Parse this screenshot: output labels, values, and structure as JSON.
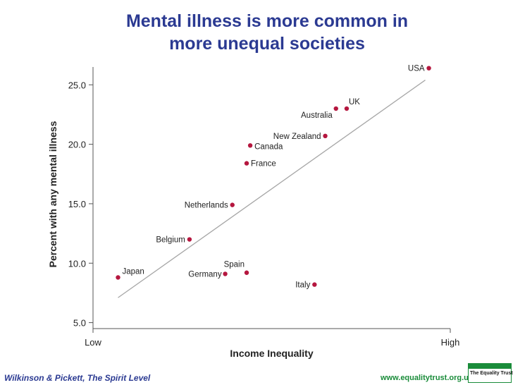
{
  "title": {
    "line1": "Mental illness is more common in",
    "line2": "more unequal societies"
  },
  "footer": {
    "citation": "Wilkinson & Pickett, The Spirit Level",
    "url": "www.equalitytrust.org.uk",
    "logo_text": "The Equality Trust"
  },
  "colors": {
    "title": "#2b3a92",
    "point": "#b5173f",
    "fit_line": "#a6a6a6",
    "footer_url": "#1a8c3a"
  },
  "chart_data": {
    "type": "scatter",
    "title": "Mental illness is more common in more unequal societies",
    "xlabel": "Income Inequality",
    "ylabel": "Percent with any mental illness",
    "x_tick_labels": [
      "Low",
      "High"
    ],
    "y_ticks": [
      "5.0",
      "10.0",
      "15.0",
      "20.0",
      "25.0"
    ],
    "xlim": [
      0,
      1
    ],
    "ylim": [
      4.5,
      26.5
    ],
    "grid": false,
    "points": [
      {
        "label": "Japan",
        "x": 0.07,
        "y": 8.8
      },
      {
        "label": "Belgium",
        "x": 0.27,
        "y": 12.0
      },
      {
        "label": "Germany",
        "x": 0.37,
        "y": 9.1
      },
      {
        "label": "Spain",
        "x": 0.43,
        "y": 9.2
      },
      {
        "label": "Netherlands",
        "x": 0.39,
        "y": 14.9
      },
      {
        "label": "France",
        "x": 0.43,
        "y": 18.4
      },
      {
        "label": "Canada",
        "x": 0.44,
        "y": 19.9
      },
      {
        "label": "Italy",
        "x": 0.62,
        "y": 8.2
      },
      {
        "label": "New Zealand",
        "x": 0.65,
        "y": 20.7
      },
      {
        "label": "Australia",
        "x": 0.68,
        "y": 23.0
      },
      {
        "label": "UK",
        "x": 0.71,
        "y": 23.0
      },
      {
        "label": "USA",
        "x": 0.94,
        "y": 26.4
      }
    ],
    "trend_line": {
      "x": [
        0.07,
        0.93
      ],
      "y": [
        7.1,
        25.4
      ]
    }
  }
}
